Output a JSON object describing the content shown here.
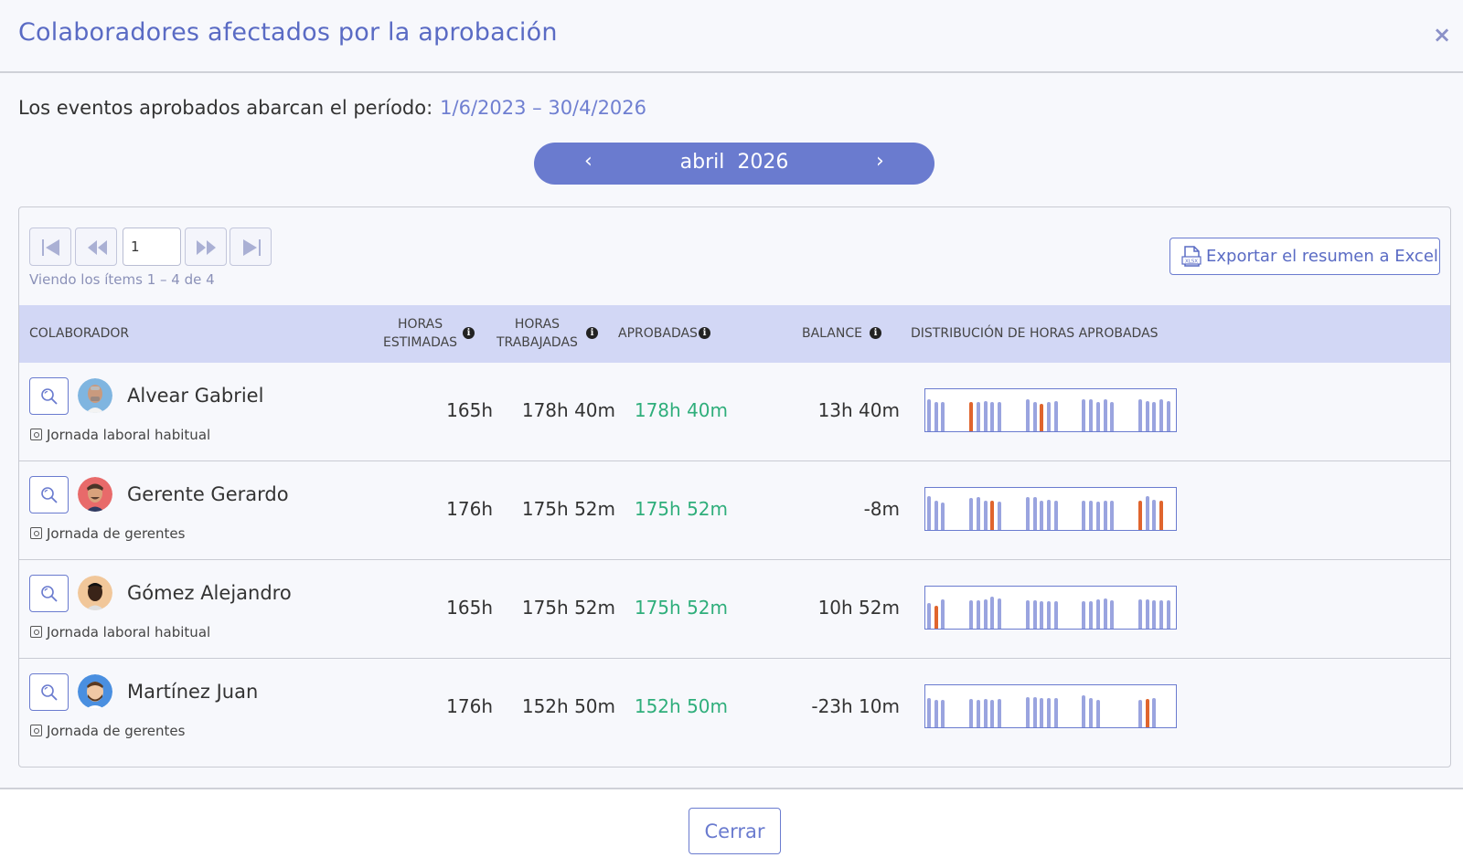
{
  "dialog": {
    "title": "Colaboradores afectados por la aprobación",
    "close_symbol": "×",
    "period_label": "Los eventos aprobados abarcan el período:",
    "period_range": "1/6/2023 – 30/4/2026"
  },
  "month_nav": {
    "prev": "‹",
    "next": "›",
    "month": "abril",
    "year": "2026"
  },
  "pager": {
    "page": "1",
    "viewing_text": "Viendo los ítems 1 – 4  de  4"
  },
  "export": {
    "label": "Exportar el resumen a Excel"
  },
  "table": {
    "headers": {
      "collaborator": "COLABORADOR",
      "estimated_1": "HORAS",
      "estimated_2": "ESTIMADAS",
      "worked_1": "HORAS",
      "worked_2": "TRABAJADAS",
      "approved": "APROBADAS",
      "balance": "BALANCE",
      "distribution": "DISTRIBUCIÓN DE HORAS APROBADAS"
    },
    "rows": [
      {
        "name": "Alvear Gabriel",
        "schedule": "Jornada laboral habitual",
        "estimated": "165h",
        "worked": "178h 40m",
        "approved": "178h 40m",
        "balance": "13h 40m"
      },
      {
        "name": "Gerente Gerardo",
        "schedule": "Jornada de gerentes",
        "estimated": "176h",
        "worked": "175h 52m",
        "approved": "175h 52m",
        "balance": "-8m"
      },
      {
        "name": "Gómez Alejandro",
        "schedule": "Jornada laboral habitual",
        "estimated": "165h",
        "worked": "175h 52m",
        "approved": "175h 52m",
        "balance": "10h 52m"
      },
      {
        "name": "Martínez Juan",
        "schedule": "Jornada de gerentes",
        "estimated": "176h",
        "worked": "152h 50m",
        "approved": "152h 50m",
        "balance": "-23h 10m"
      }
    ]
  },
  "distribution": [
    {
      "heights": [
        0.75,
        0.7,
        0.7,
        0,
        0,
        0,
        0.7,
        0.7,
        0.72,
        0.7,
        0.7,
        0,
        0,
        0,
        0.75,
        0.7,
        0.65,
        0.7,
        0.72,
        0,
        0,
        0,
        0.75,
        0.75,
        0.7,
        0.75,
        0.7,
        0,
        0,
        0,
        0.75,
        0.72,
        0.7,
        0.75,
        0.72
      ],
      "orange": [
        6,
        16
      ]
    },
    {
      "heights": [
        0.8,
        0.7,
        0.65,
        0,
        0,
        0,
        0.75,
        0.78,
        0.7,
        0.7,
        0.68,
        0,
        0,
        0,
        0.78,
        0.78,
        0.7,
        0.72,
        0.7,
        0,
        0,
        0,
        0.7,
        0.7,
        0.68,
        0.7,
        0.7,
        0,
        0,
        0,
        0.7,
        0.8,
        0.72,
        0.7,
        0
      ],
      "orange": [
        9,
        30,
        33
      ]
    },
    {
      "heights": [
        0.6,
        0.55,
        0.7,
        0,
        0,
        0,
        0.68,
        0.68,
        0.7,
        0.75,
        0.72,
        0,
        0,
        0,
        0.68,
        0.68,
        0.65,
        0.65,
        0.65,
        0,
        0,
        0,
        0.65,
        0.65,
        0.7,
        0.72,
        0.68,
        0,
        0,
        0,
        0.7,
        0.7,
        0.68,
        0.68,
        0.68
      ],
      "orange": [
        1
      ]
    },
    {
      "heights": [
        0.7,
        0.65,
        0.65,
        0,
        0,
        0,
        0.68,
        0.65,
        0.68,
        0.65,
        0.68,
        0,
        0,
        0,
        0.72,
        0.72,
        0.7,
        0.7,
        0.7,
        0,
        0,
        0,
        0.75,
        0.7,
        0.65,
        0,
        0,
        0,
        0,
        0,
        0.65,
        0.68,
        0.7,
        0,
        0
      ],
      "orange": [
        31
      ]
    }
  ],
  "colors": {
    "accent": "#6a7bcf",
    "header_bg": "#d2d7f5",
    "approved_green": "#2fae7b",
    "bar_blue": "#9aa4df",
    "bar_orange": "#e0652d"
  },
  "footer": {
    "close_label": "Cerrar"
  }
}
